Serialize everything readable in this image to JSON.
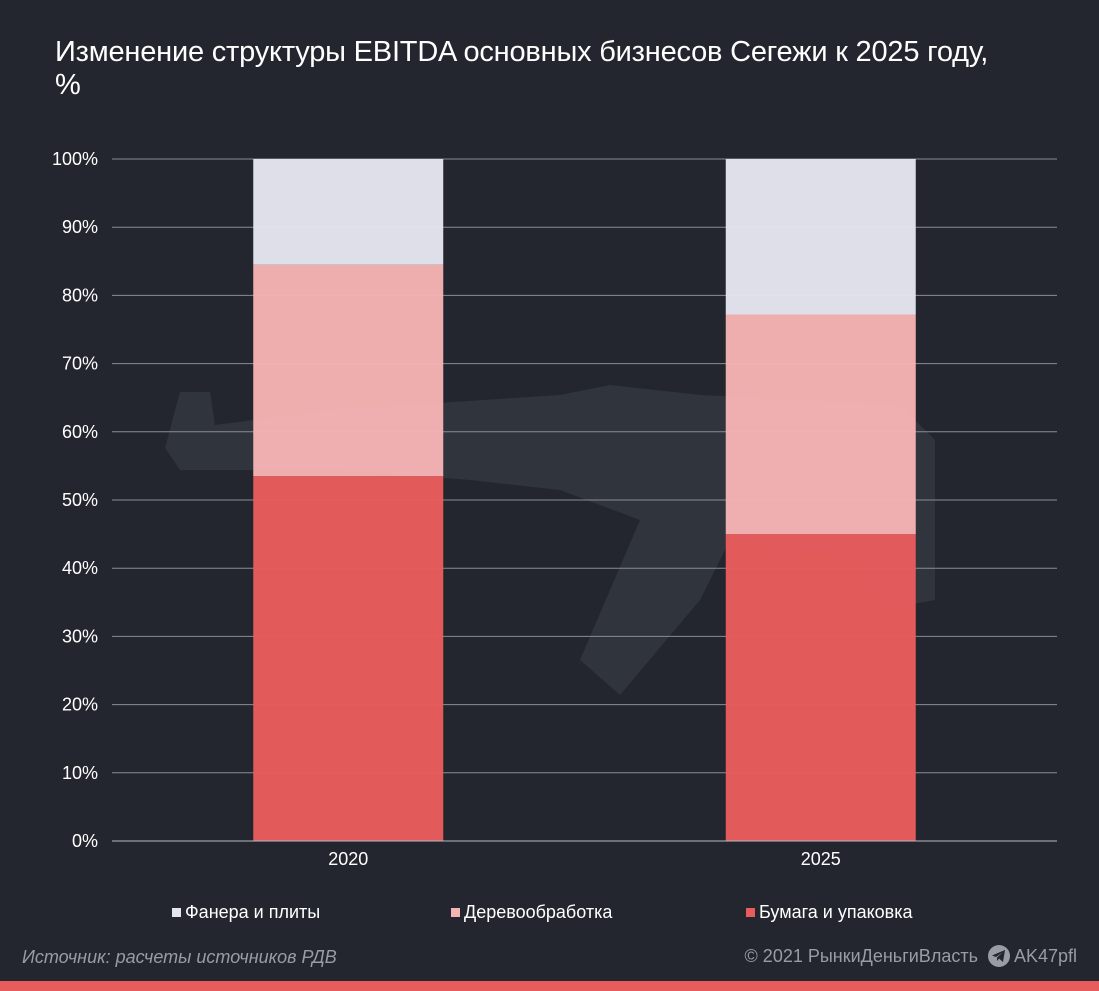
{
  "title": "Изменение структуры EBITDA основных бизнесов Сегежи к 2025 году, %",
  "chart_data": {
    "type": "bar",
    "stacked": true,
    "title": "Изменение структуры EBITDA основных бизнесов Сегежи к 2025 году, %",
    "xlabel": "",
    "ylabel": "",
    "ylim": [
      0,
      100
    ],
    "y_ticks": [
      "0%",
      "10%",
      "20%",
      "30%",
      "40%",
      "50%",
      "60%",
      "70%",
      "80%",
      "90%",
      "100%"
    ],
    "categories": [
      "2020",
      "2025"
    ],
    "series": [
      {
        "name": "Бумага и упаковка",
        "values": [
          53.5,
          45
        ],
        "color": "#e85c5c"
      },
      {
        "name": "Деревообработка",
        "values": [
          31,
          32.2
        ],
        "color": "#f6b3b3"
      },
      {
        "name": "Фанера и плиты",
        "values": [
          15.5,
          22.8
        ],
        "color": "#e4e5ee"
      }
    ],
    "legend_order": [
      "Фанера и плиты",
      "Деревообработка",
      "Бумага и упаковка"
    ],
    "grid": true,
    "legend_position": "bottom"
  },
  "footer": {
    "source": "Источник: расчеты источников РДВ",
    "copyright": "© 2021 РынкиДеньгиВласть",
    "channel": "AK47pfl"
  },
  "colors": {
    "background": "#23262e",
    "grid": "#8a8c93",
    "accent": "#e85c5c"
  },
  "icons": {
    "channel_icon": "telegram-icon"
  }
}
